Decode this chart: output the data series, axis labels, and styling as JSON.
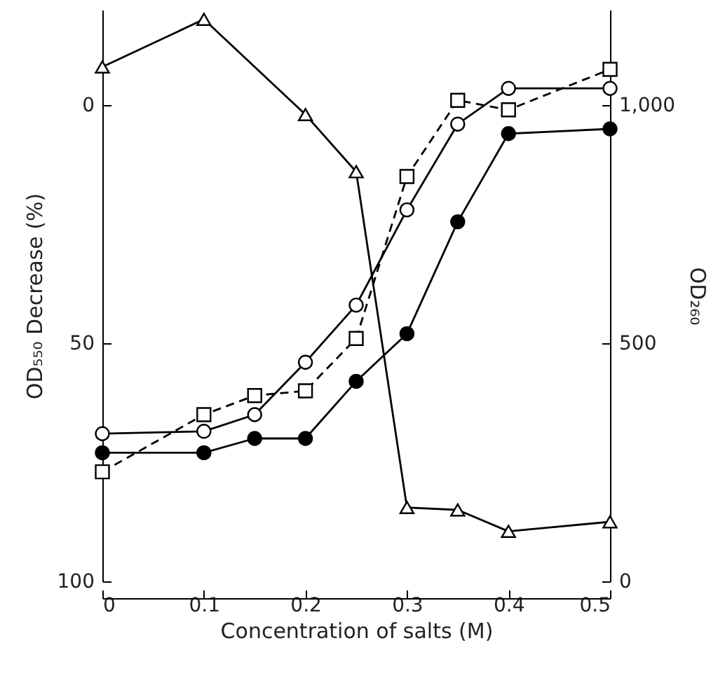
{
  "chart_data": {
    "type": "line",
    "xlabel": "Concentration of salts (M)",
    "ylabel": "OD₅₅₀ Decrease (%)",
    "y2label": "OD₂₆₀",
    "x": [
      0,
      0.1,
      0.15,
      0.2,
      0.25,
      0.3,
      0.35,
      0.4,
      0.5
    ],
    "series": [
      {
        "color": "#ffffff",
        "marker": "circle",
        "line_style": "solid",
        "values": [
          69,
          68.5,
          65,
          54,
          42,
          22,
          4,
          -3.5,
          -3.5
        ]
      },
      {
        "color": "#000000",
        "marker": "circle",
        "line_style": "solid",
        "values": [
          73,
          73,
          70,
          70,
          58,
          48,
          24.5,
          6,
          5
        ]
      },
      {
        "color": "#ffffff",
        "marker": "square",
        "line_style": "dashed",
        "values": [
          77,
          65,
          61,
          60,
          49,
          15,
          -1,
          1,
          -7.5
        ]
      },
      {
        "color": "#ffffff",
        "marker": "triangle",
        "line_style": "solid",
        "axis": "y2",
        "x": [
          0,
          0.1,
          0.2,
          0.25,
          0.3,
          0.35,
          0.4,
          0.5
        ],
        "values": [
          1080,
          1180,
          980,
          860,
          155,
          150,
          105,
          125
        ]
      }
    ],
    "xlim": [
      0,
      0.5
    ],
    "xticks": [
      0,
      0.1,
      0.2,
      0.3,
      0.4,
      0.5
    ],
    "ylim": [
      100,
      -20
    ],
    "yticks": [
      0,
      50,
      100
    ],
    "y2lim": [
      0,
      1200
    ],
    "y2ticks": [
      0,
      500,
      {
        "value": 1000,
        "label": "1,000"
      }
    ],
    "grid": false
  }
}
